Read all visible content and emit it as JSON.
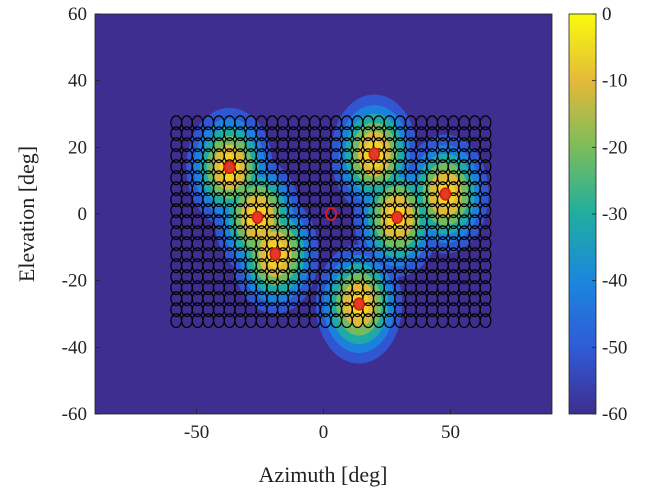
{
  "chart_data": {
    "type": "heatmap",
    "xlabel": "Azimuth [deg]",
    "ylabel": "Elevation [deg]",
    "xlim": [
      -90,
      90
    ],
    "ylim": [
      -60,
      60
    ],
    "x_ticks": [
      -50,
      0,
      50
    ],
    "y_ticks": [
      60,
      40,
      20,
      0,
      -20,
      -40,
      -60
    ],
    "colorbar": {
      "range": [
        -60,
        0
      ],
      "ticks": [
        0,
        -10,
        -20,
        -30,
        -40,
        -50,
        -60
      ],
      "colormap": "parula"
    },
    "background_color": "#3e2e8f",
    "sources": [
      {
        "az": -37,
        "el": 14
      },
      {
        "az": -26,
        "el": -1
      },
      {
        "az": -19,
        "el": -12
      },
      {
        "az": 20,
        "el": 18
      },
      {
        "az": 29,
        "el": -1
      },
      {
        "az": 48,
        "el": 6
      },
      {
        "az": 14,
        "el": -27
      }
    ],
    "center_marker": {
      "az": 3,
      "el": 0
    },
    "element_grid": {
      "az_range": [
        -58,
        64
      ],
      "el_range": [
        -32,
        30
      ],
      "az_step": 4.2,
      "el_step": 3.3
    }
  }
}
